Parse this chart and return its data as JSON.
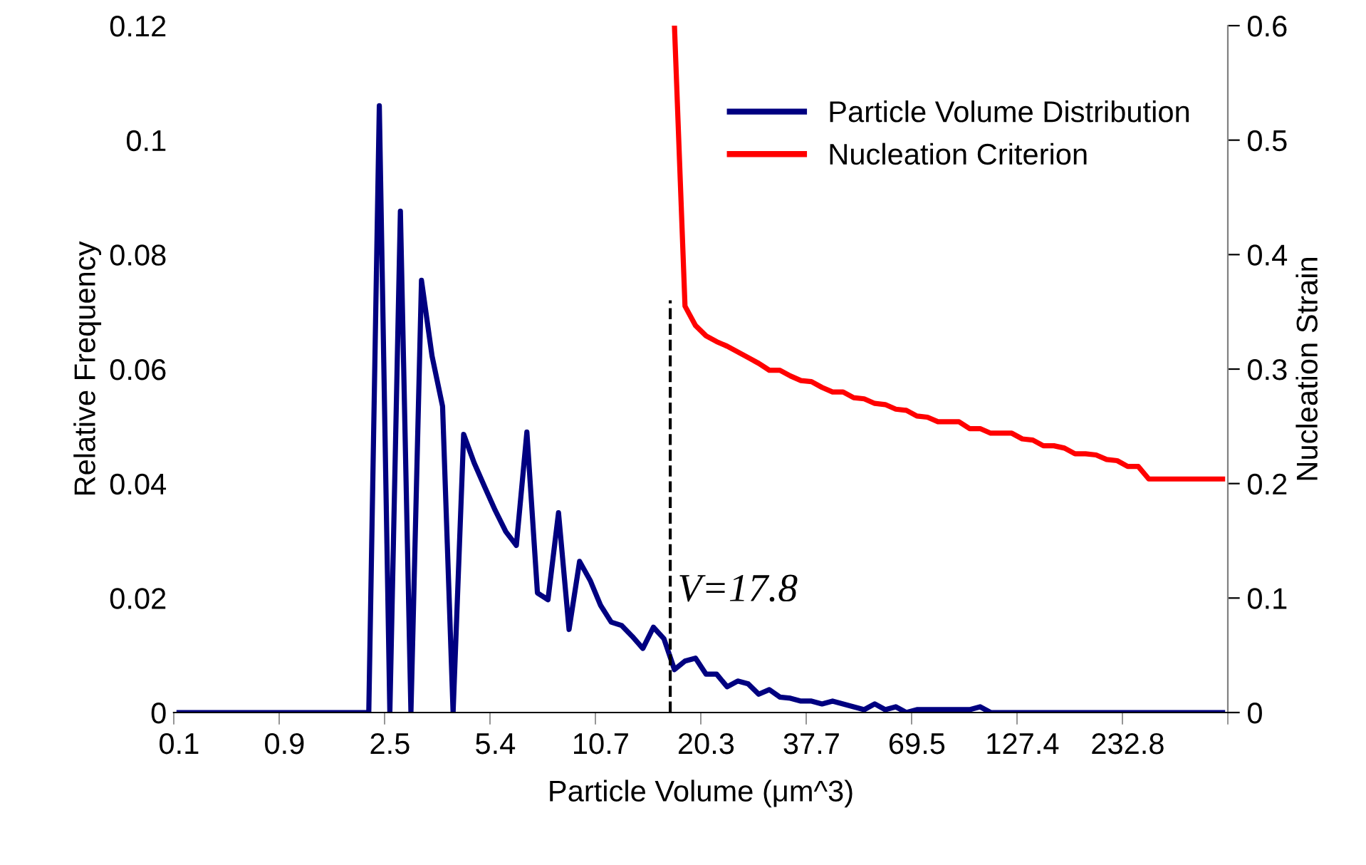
{
  "chart_data": {
    "type": "line",
    "xlabel": "Particle Volume (μm^3)",
    "ylabel": "Relative Frequency",
    "y2label": "Nucleation Strain",
    "categories": [
      "0.1",
      null,
      null,
      null,
      null,
      null,
      null,
      null,
      null,
      null,
      "0.9",
      null,
      null,
      null,
      null,
      null,
      null,
      null,
      null,
      null,
      "2.5",
      null,
      null,
      null,
      null,
      null,
      null,
      null,
      null,
      null,
      "5.4",
      null,
      null,
      null,
      null,
      null,
      null,
      null,
      null,
      null,
      "10.7",
      null,
      null,
      null,
      null,
      null,
      null,
      null,
      null,
      null,
      "20.3",
      null,
      null,
      null,
      null,
      null,
      null,
      null,
      null,
      null,
      "37.7",
      null,
      null,
      null,
      null,
      null,
      null,
      null,
      null,
      null,
      "69.5",
      null,
      null,
      null,
      null,
      null,
      null,
      null,
      null,
      null,
      "127.4",
      null,
      null,
      null,
      null,
      null,
      null,
      null,
      null,
      null,
      "232.8",
      null,
      null,
      null,
      null,
      null,
      null,
      null,
      null,
      null
    ],
    "series": [
      {
        "name": "Particle Volume Distribution",
        "color": "#000080",
        "values": [
          0,
          0,
          0,
          0,
          0,
          0,
          0,
          0,
          0,
          0,
          0,
          0,
          0,
          0,
          0,
          0,
          0,
          0,
          0,
          0.106,
          0,
          0.0876,
          0,
          0.0755,
          0.0623,
          0.0535,
          0,
          0.0486,
          0.0436,
          0.0394,
          0.0353,
          0.0316,
          0.0292,
          0.049,
          0.0209,
          0.0197,
          0.0349,
          0.0145,
          0.0264,
          0.0231,
          0.0187,
          0.0158,
          0.0152,
          0.0133,
          0.0112,
          0.0149,
          0.0129,
          0.0075,
          0.009,
          0.0095,
          0.0067,
          0.0067,
          0.0045,
          0.0055,
          0.005,
          0.0032,
          0.004,
          0.0027,
          0.0025,
          0.002,
          0.002,
          0.0015,
          0.002,
          0.0015,
          0.001,
          0.0005,
          0.0015,
          0.0005,
          0.001,
          0,
          0.0005,
          0.0005,
          0.0005,
          0.0005,
          0.0005,
          0.0005,
          0.001,
          0,
          0,
          0,
          0,
          0,
          0,
          0,
          0,
          0,
          0,
          0,
          0,
          0,
          0,
          0,
          0,
          0,
          0,
          0,
          0,
          0,
          0,
          0
        ]
      },
      {
        "name": "Nucleation Criterion",
        "color": "#ff0000",
        "axis": "y2",
        "values": [
          null,
          null,
          null,
          null,
          null,
          null,
          null,
          null,
          null,
          null,
          null,
          null,
          null,
          null,
          null,
          null,
          null,
          null,
          null,
          null,
          null,
          null,
          null,
          null,
          null,
          null,
          null,
          null,
          null,
          null,
          null,
          null,
          null,
          null,
          null,
          null,
          null,
          null,
          null,
          null,
          null,
          null,
          null,
          null,
          null,
          null,
          null,
          0.6,
          0.355,
          0.338,
          0.329,
          0.324,
          0.32,
          0.315,
          0.31,
          0.305,
          0.299,
          0.299,
          0.294,
          0.29,
          0.289,
          0.284,
          0.28,
          0.28,
          0.275,
          0.274,
          0.27,
          0.269,
          0.265,
          0.264,
          0.259,
          0.258,
          0.254,
          0.254,
          0.254,
          0.248,
          0.248,
          0.244,
          0.244,
          0.244,
          0.239,
          0.238,
          0.233,
          0.233,
          0.231,
          0.226,
          0.226,
          0.225,
          0.221,
          0.22,
          0.215,
          0.215,
          0.204,
          0.204,
          0.204,
          0.204,
          0.204,
          0.204,
          0.204,
          0.204
        ]
      }
    ],
    "ylim": [
      0,
      0.12
    ],
    "yticks": [
      0,
      0.02,
      0.04,
      0.06,
      0.08,
      {
        "value": 0.1,
        "label": "0.1"
      },
      0.12
    ],
    "y2lim": [
      0,
      0.6
    ],
    "y2ticks": [
      0,
      0.1,
      0.2,
      0.3,
      0.4,
      0.5,
      0.6
    ],
    "annotations": [
      "V=17.8"
    ],
    "grid": false,
    "legend": "top right",
    "marker": "none",
    "line_style": "solid"
  }
}
